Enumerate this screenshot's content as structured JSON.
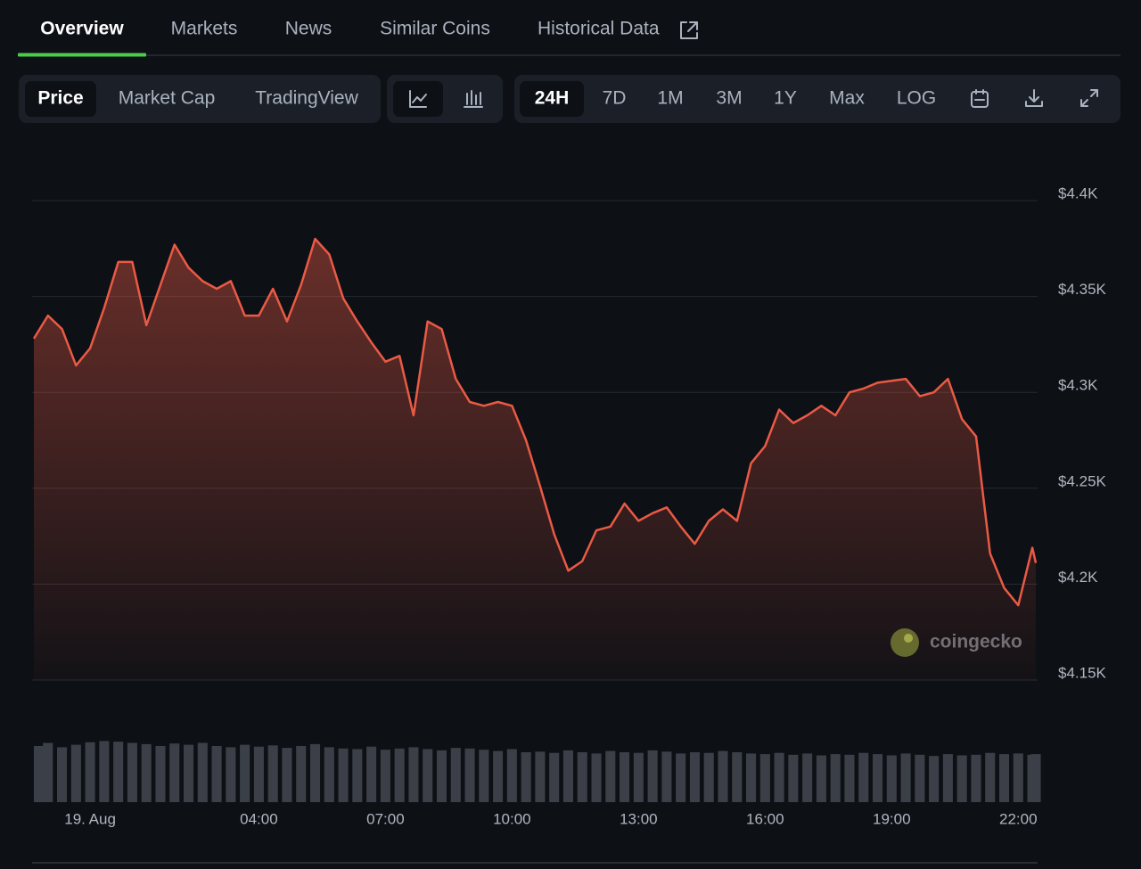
{
  "tabs": [
    "Overview",
    "Markets",
    "News",
    "Similar Coins",
    "Historical Data"
  ],
  "toolbar": {
    "views": [
      "Price",
      "Market Cap",
      "TradingView"
    ],
    "ranges": [
      "24H",
      "7D",
      "1M",
      "3M",
      "1Y",
      "Max",
      "LOG"
    ]
  },
  "watermark": "coingecko",
  "chart_data": {
    "type": "line",
    "color": "#ea5a45",
    "grid": true,
    "x": [
      "22:40",
      "23:00",
      "23:20",
      "23:40",
      "00:00",
      "00:20",
      "00:40",
      "01:00",
      "01:20",
      "01:40",
      "02:00",
      "02:20",
      "02:40",
      "03:00",
      "03:20",
      "03:40",
      "04:00",
      "04:20",
      "04:40",
      "05:00",
      "05:20",
      "05:40",
      "06:00",
      "06:20",
      "06:40",
      "07:00",
      "07:20",
      "07:40",
      "08:00",
      "08:20",
      "08:40",
      "09:00",
      "09:20",
      "09:40",
      "10:00",
      "10:20",
      "10:40",
      "11:00",
      "11:20",
      "11:40",
      "12:00",
      "12:20",
      "12:40",
      "13:00",
      "13:20",
      "13:40",
      "14:00",
      "14:20",
      "14:40",
      "15:00",
      "15:20",
      "15:40",
      "16:00",
      "16:20",
      "16:40",
      "17:00",
      "17:20",
      "17:40",
      "18:00",
      "18:20",
      "18:40",
      "19:00",
      "19:20",
      "19:40",
      "20:00",
      "20:20",
      "20:40",
      "21:00",
      "21:20",
      "21:40",
      "22:00",
      "22:20",
      "22:25"
    ],
    "values": [
      4328,
      4340,
      4333,
      4314,
      4323,
      4344,
      4368,
      4368,
      4335,
      4356,
      4377,
      4365,
      4358,
      4354,
      4358,
      4340,
      4340,
      4354,
      4337,
      4356,
      4380,
      4372,
      4349,
      4337,
      4326,
      4316,
      4319,
      4288,
      4337,
      4333,
      4307,
      4295,
      4293,
      4295,
      4293,
      4275,
      4251,
      4226,
      4207,
      4212,
      4228,
      4230,
      4242,
      4233,
      4237,
      4240,
      4230,
      4221,
      4233,
      4239,
      4233,
      4263,
      4272,
      4291,
      4284,
      4288,
      4293,
      4288,
      4300,
      4302,
      4305,
      4306,
      4307,
      4298,
      4300,
      4307,
      4286,
      4277,
      4216,
      4198,
      4189,
      4219,
      4211
    ],
    "volume": [
      90,
      95,
      88,
      92,
      96,
      98,
      97,
      95,
      93,
      90,
      94,
      92,
      95,
      90,
      88,
      92,
      89,
      91,
      87,
      90,
      93,
      88,
      86,
      85,
      89,
      84,
      86,
      88,
      85,
      83,
      87,
      86,
      84,
      82,
      85,
      80,
      81,
      79,
      83,
      80,
      78,
      82,
      80,
      79,
      83,
      81,
      78,
      80,
      79,
      82,
      80,
      78,
      77,
      79,
      76,
      78,
      75,
      77,
      76,
      79,
      77,
      75,
      78,
      76,
      74,
      77,
      75,
      76,
      79,
      77,
      78,
      76,
      77
    ],
    "volume_color": "#3b4048",
    "volume_lim": [
      0,
      100
    ],
    "xlim": [
      "22:40",
      "22:25"
    ],
    "xticks": [
      {
        "value": "00:00",
        "label": "19. Aug"
      },
      "04:00",
      "07:00",
      "10:00",
      "13:00",
      "16:00",
      "19:00",
      "22:00"
    ],
    "ylim": [
      4150,
      4400
    ],
    "yticks": [
      {
        "value": 4150,
        "label": "$4.15K"
      },
      {
        "value": 4200,
        "label": "$4.2K"
      },
      {
        "value": 4250,
        "label": "$4.25K"
      },
      {
        "value": 4300,
        "label": "$4.3K"
      },
      {
        "value": 4350,
        "label": "$4.35K"
      },
      {
        "value": 4400,
        "label": "$4.4K"
      }
    ]
  }
}
